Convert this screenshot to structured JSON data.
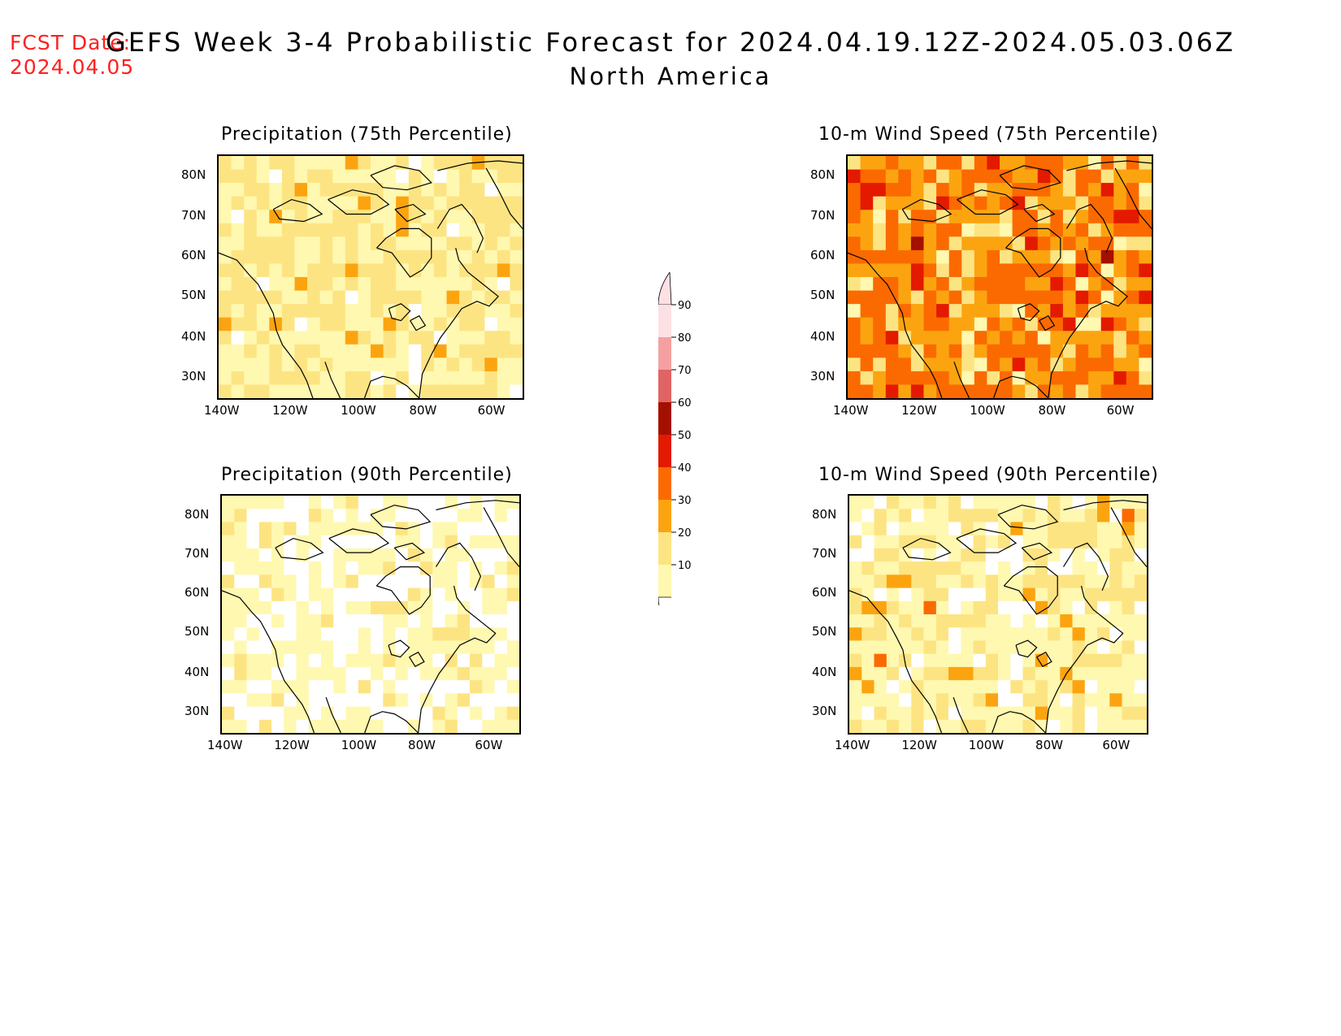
{
  "header": {
    "fcst_label": "FCST Date:",
    "fcst_date": "2024.04.05",
    "title": "GEFS Week 3-4 Probabilistic Forecast for 2024.04.19.12Z-2024.05.03.06Z",
    "region": "North America"
  },
  "panels": [
    {
      "title": "Precipitation (75th Percentile)",
      "variable": "precipitation",
      "percentile": 75,
      "dominant_category": "10-20 / 20-30"
    },
    {
      "title": "10-m Wind Speed (75th Percentile)",
      "variable": "wind_speed",
      "percentile": 75,
      "dominant_category": "30-40 / 40-50"
    },
    {
      "title": "Precipitation (90th Percentile)",
      "variable": "precipitation",
      "percentile": 90,
      "dominant_category": "<10 / 10-20"
    },
    {
      "title": "10-m Wind Speed (90th Percentile)",
      "variable": "wind_speed",
      "percentile": 90,
      "dominant_category": "10-20 / 20-30"
    }
  ],
  "axes": {
    "lon_labels": [
      "140W",
      "120W",
      "100W",
      "80W",
      "60W"
    ],
    "lat_labels": [
      "80N",
      "70N",
      "60N",
      "50N",
      "40N",
      "30N"
    ]
  },
  "colorbar": {
    "levels": [
      "90",
      "80",
      "70",
      "60",
      "50",
      "40",
      "30",
      "20",
      "10"
    ],
    "colors": {
      "below_10": "#ffffff",
      "c10_20": "#fff8b0",
      "c20_30": "#fde483",
      "c30_40": "#fca410",
      "c40_50": "#fb6a00",
      "c50_60": "#e31a00",
      "c60_70": "#a50f00",
      "c70_80": "#e06464",
      "c80_90": "#f4a0a0",
      "above_90": "#fde0e4"
    }
  }
}
